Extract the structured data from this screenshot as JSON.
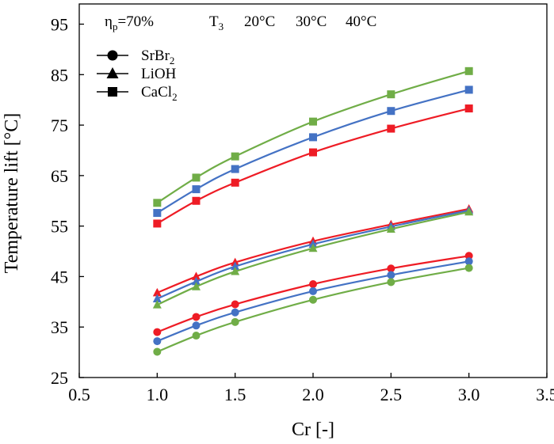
{
  "chart_data": {
    "type": "line",
    "title": "",
    "xlabel": "Cr [-]",
    "ylabel": "Temperature lift [°C]",
    "xlim": [
      0.5,
      3.5
    ],
    "ylim": [
      25,
      99
    ],
    "x_ticks": [
      "0.5",
      "1.0",
      "1.5",
      "2.0",
      "2.5",
      "3.0",
      "3.5"
    ],
    "y_ticks": [
      "25",
      "35",
      "45",
      "55",
      "65",
      "75",
      "85",
      "95"
    ],
    "x": [
      1.0,
      1.25,
      1.5,
      2.0,
      2.5,
      3.0
    ],
    "annotations": {
      "efficiency": {
        "symbol": "η",
        "subscript": "p",
        "value": "=70%"
      },
      "t3": {
        "symbol": "T",
        "subscript": "3"
      },
      "temperatures": [
        {
          "label": "20°C",
          "color": "#ee1c25"
        },
        {
          "label": "30°C",
          "color": "#4472c4"
        },
        {
          "label": "40°C",
          "color": "#70ad47"
        }
      ],
      "materials": [
        {
          "base": "SrBr",
          "sub": "2",
          "marker": "circle"
        },
        {
          "base": "LiOH",
          "sub": "",
          "marker": "triangle"
        },
        {
          "base": "CaCl",
          "sub": "2",
          "marker": "square"
        }
      ]
    },
    "series": [
      {
        "name": "CaCl2 20°C",
        "material": "CaCl2",
        "marker": "square",
        "color": "#ee1c25",
        "values": [
          55.5,
          60.0,
          63.6,
          69.6,
          74.3,
          78.3
        ]
      },
      {
        "name": "CaCl2 30°C",
        "material": "CaCl2",
        "marker": "square",
        "color": "#4472c4",
        "values": [
          57.6,
          62.3,
          66.3,
          72.6,
          77.8,
          82.0
        ]
      },
      {
        "name": "CaCl2 40°C",
        "material": "CaCl2",
        "marker": "square",
        "color": "#70ad47",
        "values": [
          59.6,
          64.6,
          68.8,
          75.7,
          81.1,
          85.7
        ]
      },
      {
        "name": "LiOH 20°C",
        "material": "LiOH",
        "marker": "triangle",
        "color": "#ee1c25",
        "values": [
          41.8,
          45.0,
          47.8,
          52.0,
          55.3,
          58.4
        ]
      },
      {
        "name": "LiOH 30°C",
        "material": "LiOH",
        "marker": "triangle",
        "color": "#4472c4",
        "values": [
          40.6,
          44.0,
          47.0,
          51.4,
          54.9,
          58.1
        ]
      },
      {
        "name": "LiOH 40°C",
        "material": "LiOH",
        "marker": "triangle",
        "color": "#70ad47",
        "values": [
          39.4,
          43.0,
          46.0,
          50.6,
          54.4,
          57.8
        ]
      },
      {
        "name": "SrBr2 20°C",
        "material": "SrBr2",
        "marker": "circle",
        "color": "#ee1c25",
        "values": [
          34.0,
          37.0,
          39.5,
          43.5,
          46.6,
          49.1
        ]
      },
      {
        "name": "SrBr2 30°C",
        "material": "SrBr2",
        "marker": "circle",
        "color": "#4472c4",
        "values": [
          32.2,
          35.3,
          37.9,
          42.1,
          45.3,
          48.0
        ]
      },
      {
        "name": "SrBr2 40°C",
        "material": "SrBr2",
        "marker": "circle",
        "color": "#70ad47",
        "values": [
          30.1,
          33.3,
          36.0,
          40.4,
          43.9,
          46.7
        ]
      }
    ]
  }
}
